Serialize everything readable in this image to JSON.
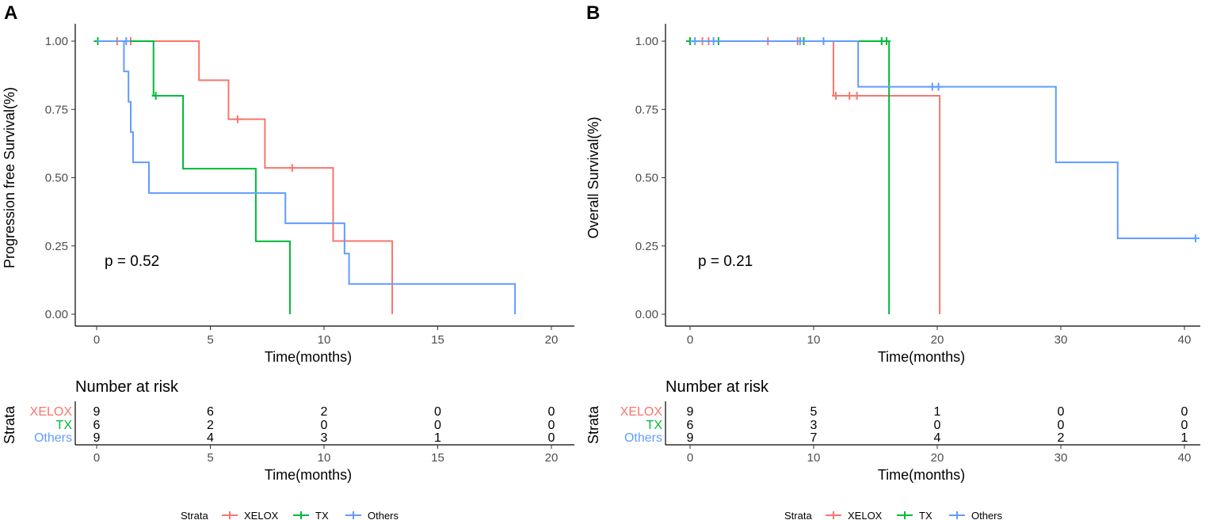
{
  "colors": {
    "XELOX": "#F8766D",
    "TX": "#00BA38",
    "Others": "#619CFF",
    "axis": "#000000"
  },
  "chart_data": [
    {
      "type": "line",
      "panel": "A",
      "xlabel": "Time(months)",
      "ylabel": "Progression free Survival(%)",
      "xlim": [
        0,
        20
      ],
      "ylim": [
        0,
        1
      ],
      "xticks": [
        0,
        5,
        10,
        15,
        20
      ],
      "yticks": [
        "0.00",
        "0.25",
        "0.50",
        "0.75",
        "1.00"
      ],
      "p_value": "p = 0.52",
      "series": [
        {
          "name": "XELOX",
          "steps": [
            [
              0,
              1.0
            ],
            [
              4.5,
              0.857
            ],
            [
              5.8,
              0.714
            ],
            [
              7.4,
              0.536
            ],
            [
              10.4,
              0.268
            ],
            [
              13.0,
              0.0
            ]
          ],
          "end": 13.0,
          "censors": [
            [
              0.9,
              1.0
            ],
            [
              1.5,
              1.0
            ],
            [
              6.2,
              0.714
            ],
            [
              8.6,
              0.536
            ]
          ]
        },
        {
          "name": "TX",
          "steps": [
            [
              0,
              1.0
            ],
            [
              2.5,
              0.8
            ],
            [
              3.8,
              0.533
            ],
            [
              7.0,
              0.267
            ],
            [
              8.5,
              0.0
            ]
          ],
          "end": 8.5,
          "censors": [
            [
              0.05,
              1.0
            ],
            [
              2.6,
              0.8
            ]
          ]
        },
        {
          "name": "Others",
          "steps": [
            [
              0,
              1.0
            ],
            [
              1.2,
              0.889
            ],
            [
              1.4,
              0.778
            ],
            [
              1.5,
              0.667
            ],
            [
              1.6,
              0.556
            ],
            [
              2.3,
              0.444
            ],
            [
              8.3,
              0.333
            ],
            [
              10.9,
              0.222
            ],
            [
              11.1,
              0.111
            ],
            [
              18.4,
              0.0
            ]
          ],
          "end": 18.4,
          "censors": [
            [
              1.3,
              1.0
            ]
          ]
        }
      ],
      "risk_table": {
        "title": "Number at risk",
        "strata_label": "Strata",
        "xlabel": "Time(months)",
        "times": [
          0,
          5,
          10,
          15,
          20
        ],
        "rows": [
          {
            "name": "XELOX",
            "values": [
              "9",
              "6",
              "2",
              "0",
              "0"
            ]
          },
          {
            "name": "TX",
            "values": [
              "6",
              "2",
              "0",
              "0",
              "0"
            ]
          },
          {
            "name": "Others",
            "values": [
              "9",
              "4",
              "3",
              "1",
              "0"
            ]
          }
        ]
      },
      "legend": {
        "title": "Strata",
        "labels": [
          "XELOX",
          "TX",
          "Others"
        ]
      }
    },
    {
      "type": "line",
      "panel": "B",
      "xlabel": "Time(months)",
      "ylabel": "Overall Survival(%)",
      "xlim": [
        0,
        40
      ],
      "ylim": [
        0,
        1
      ],
      "xticks": [
        0,
        10,
        20,
        30,
        40
      ],
      "yticks": [
        "0.00",
        "0.25",
        "0.50",
        "0.75",
        "1.00"
      ],
      "p_value": "p = 0.21",
      "series": [
        {
          "name": "XELOX",
          "steps": [
            [
              0,
              1.0
            ],
            [
              11.6,
              0.8
            ],
            [
              20.2,
              0.0
            ]
          ],
          "end": 20.2,
          "censors": [
            [
              1.0,
              1.0
            ],
            [
              1.5,
              1.0
            ],
            [
              6.3,
              1.0
            ],
            [
              8.7,
              1.0
            ],
            [
              11.8,
              0.8
            ],
            [
              12.9,
              0.8
            ],
            [
              13.5,
              0.8
            ]
          ]
        },
        {
          "name": "TX",
          "steps": [
            [
              0,
              1.0
            ],
            [
              16.1,
              0.0
            ]
          ],
          "end": 16.1,
          "censors": [
            [
              0.0,
              1.0
            ],
            [
              2.3,
              1.0
            ],
            [
              9.2,
              1.0
            ],
            [
              15.5,
              1.0
            ],
            [
              15.9,
              1.0
            ]
          ]
        },
        {
          "name": "Others",
          "steps": [
            [
              0,
              1.0
            ],
            [
              13.6,
              0.833
            ],
            [
              29.6,
              0.556
            ],
            [
              34.6,
              0.278
            ]
          ],
          "end": 40.9,
          "censors": [
            [
              0.4,
              1.0
            ],
            [
              1.9,
              1.0
            ],
            [
              8.9,
              1.0
            ],
            [
              10.8,
              1.0
            ],
            [
              19.6,
              0.833
            ],
            [
              20.1,
              0.833
            ],
            [
              40.9,
              0.278
            ]
          ]
        }
      ],
      "risk_table": {
        "title": "Number at risk",
        "strata_label": "Strata",
        "xlabel": "Time(months)",
        "times": [
          0,
          10,
          20,
          30,
          40
        ],
        "rows": [
          {
            "name": "XELOX",
            "values": [
              "9",
              "5",
              "1",
              "0",
              "0"
            ]
          },
          {
            "name": "TX",
            "values": [
              "6",
              "3",
              "0",
              "0",
              "0"
            ]
          },
          {
            "name": "Others",
            "values": [
              "9",
              "7",
              "4",
              "2",
              "1"
            ]
          }
        ]
      },
      "legend": {
        "title": "Strata",
        "labels": [
          "XELOX",
          "TX",
          "Others"
        ]
      }
    }
  ]
}
